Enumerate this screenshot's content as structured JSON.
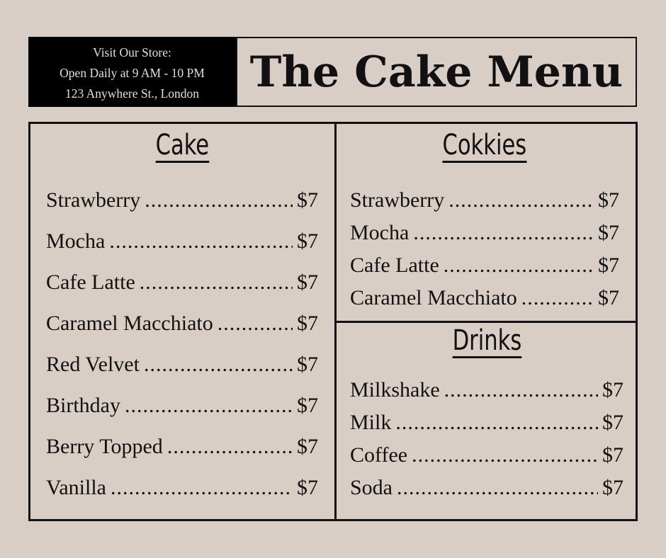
{
  "store_info": {
    "line1": "Visit Our Store:",
    "line2": "Open Daily at 9 AM - 10 PM",
    "line3": "123 Anywhere St., London"
  },
  "title": "The Cake Menu",
  "sections": [
    {
      "heading": "Cake",
      "items": [
        {
          "name": "Strawberry",
          "price": "$7"
        },
        {
          "name": "Mocha",
          "price": "$7"
        },
        {
          "name": "Cafe Latte",
          "price": "$7"
        },
        {
          "name": "Caramel Macchiato",
          "price": "$7"
        },
        {
          "name": "Red Velvet",
          "price": "$7"
        },
        {
          "name": "Birthday",
          "price": "$7"
        },
        {
          "name": "Berry Topped",
          "price": "$7"
        },
        {
          "name": "Vanilla",
          "price": "$7"
        }
      ]
    },
    {
      "heading": "Cokkies",
      "items": [
        {
          "name": "Strawberry",
          "price": "$7"
        },
        {
          "name": "Mocha",
          "price": "$7"
        },
        {
          "name": "Cafe Latte",
          "price": "$7"
        },
        {
          "name": "Caramel Macchiato",
          "price": "$7"
        }
      ]
    },
    {
      "heading": "Drinks",
      "items": [
        {
          "name": "Milkshake",
          "price": "$7"
        },
        {
          "name": "Milk",
          "price": "$7"
        },
        {
          "name": "Coffee",
          "price": "$7"
        },
        {
          "name": "Soda",
          "price": "$7"
        }
      ]
    }
  ],
  "colors": {
    "background": "#d9cec5",
    "ink": "#111111"
  }
}
